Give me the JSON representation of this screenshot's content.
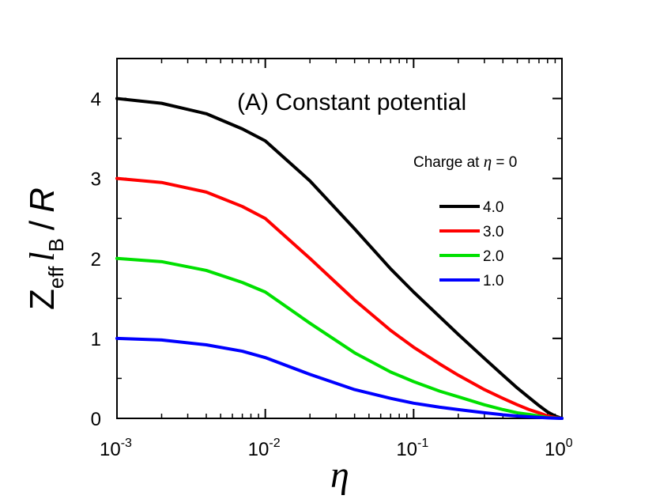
{
  "chart_data": {
    "type": "line",
    "title": "(A) Constant potential",
    "x_scale": "log",
    "xlim": [
      0.001,
      1
    ],
    "ylim": [
      0,
      4.5
    ],
    "x_ticks": [
      {
        "base": "10",
        "exp": "-3",
        "value": 0.001
      },
      {
        "base": "10",
        "exp": "-2",
        "value": 0.01
      },
      {
        "base": "10",
        "exp": "-1",
        "value": 0.1
      },
      {
        "base": "10",
        "exp": "0",
        "value": 1
      }
    ],
    "y_ticks": [
      0,
      1,
      2,
      3,
      4
    ],
    "xlabel": "η",
    "ylabel": {
      "z": "Z",
      "z_sub": "eff",
      "l": "l",
      "l_sub": "B",
      "slash": "/",
      "r": "R"
    },
    "legend": {
      "title_prefix": "Charge at ",
      "title_eta": "η",
      "title_suffix": " = 0",
      "placement": "right"
    },
    "series": [
      {
        "name": "4.0",
        "color": "#000000",
        "x": [
          0.001,
          0.002,
          0.004,
          0.007,
          0.01,
          0.02,
          0.04,
          0.07,
          0.1,
          0.15,
          0.2,
          0.3,
          0.4,
          0.5,
          0.6,
          0.7,
          0.8,
          0.9,
          1.0
        ],
        "y": [
          4.0,
          3.94,
          3.81,
          3.62,
          3.47,
          2.97,
          2.37,
          1.87,
          1.58,
          1.27,
          1.05,
          0.75,
          0.54,
          0.38,
          0.26,
          0.16,
          0.08,
          0.03,
          0.0
        ]
      },
      {
        "name": "3.0",
        "color": "#ff0000",
        "x": [
          0.001,
          0.002,
          0.004,
          0.007,
          0.01,
          0.02,
          0.04,
          0.07,
          0.1,
          0.15,
          0.2,
          0.3,
          0.4,
          0.5,
          0.6,
          0.7,
          0.8,
          0.9,
          1.0
        ],
        "y": [
          3.0,
          2.95,
          2.83,
          2.65,
          2.5,
          2.0,
          1.48,
          1.1,
          0.89,
          0.68,
          0.54,
          0.36,
          0.25,
          0.17,
          0.11,
          0.07,
          0.03,
          0.01,
          0.0
        ]
      },
      {
        "name": "2.0",
        "color": "#00e000",
        "x": [
          0.001,
          0.002,
          0.004,
          0.007,
          0.01,
          0.02,
          0.04,
          0.07,
          0.1,
          0.15,
          0.2,
          0.3,
          0.4,
          0.5,
          0.6,
          0.7,
          0.8,
          0.9,
          1.0
        ],
        "y": [
          2.0,
          1.96,
          1.85,
          1.7,
          1.58,
          1.19,
          0.82,
          0.58,
          0.46,
          0.34,
          0.27,
          0.17,
          0.11,
          0.07,
          0.05,
          0.03,
          0.01,
          0.005,
          0.0
        ]
      },
      {
        "name": "1.0",
        "color": "#0000ff",
        "x": [
          0.001,
          0.002,
          0.004,
          0.007,
          0.01,
          0.02,
          0.04,
          0.07,
          0.1,
          0.15,
          0.2,
          0.3,
          0.4,
          0.5,
          0.6,
          0.7,
          0.8,
          0.9,
          1.0
        ],
        "y": [
          1.0,
          0.98,
          0.92,
          0.84,
          0.76,
          0.55,
          0.36,
          0.25,
          0.19,
          0.14,
          0.11,
          0.07,
          0.045,
          0.03,
          0.02,
          0.012,
          0.006,
          0.002,
          0.0
        ]
      }
    ]
  }
}
